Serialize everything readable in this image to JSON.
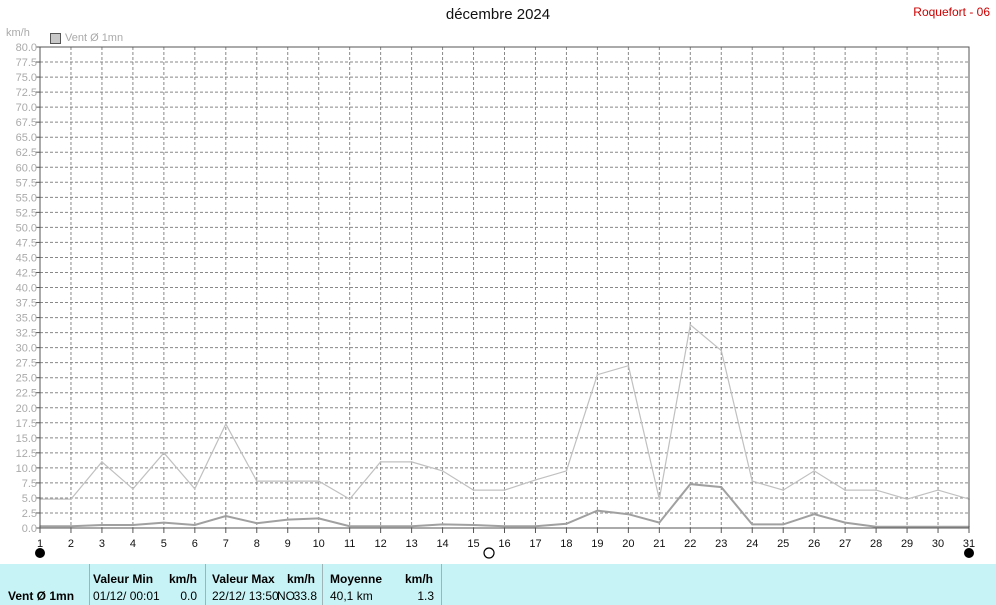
{
  "header": {
    "title": "décembre 2024",
    "station": "Roquefort - 06",
    "unit": "km/h",
    "legend_label": "Vent Ø 1mn"
  },
  "summary": {
    "series_label": "Vent Ø 1mn",
    "min_header": "Valeur Min",
    "min_unit": "km/h",
    "min_date": "01/12/  00:01",
    "min_value": "0.0",
    "max_header": "Valeur Max",
    "max_unit": "km/h",
    "max_date": "22/12/  13:50",
    "max_dir": "NO",
    "max_value": "33.8",
    "avg_header": "Moyenne",
    "avg_unit": "km/h",
    "avg_distance": "40,1 km",
    "avg_value": "1.3"
  },
  "chart_data": {
    "type": "line",
    "x": [
      1,
      2,
      3,
      4,
      5,
      6,
      7,
      8,
      9,
      10,
      11,
      12,
      13,
      14,
      15,
      16,
      17,
      18,
      19,
      20,
      21,
      22,
      23,
      24,
      25,
      26,
      27,
      28,
      29,
      30,
      31
    ],
    "x_ticks": [
      "1",
      "2",
      "3",
      "4",
      "5",
      "6",
      "7",
      "8",
      "9",
      "10",
      "11",
      "12",
      "13",
      "14",
      "15",
      "16",
      "17",
      "18",
      "19",
      "20",
      "21",
      "22",
      "23",
      "24",
      "25",
      "26",
      "27",
      "28",
      "29",
      "30",
      "31"
    ],
    "ylim": [
      0,
      80
    ],
    "y_step": 2.5,
    "grid": true,
    "ylabel": "km/h",
    "series": [
      {
        "color": "#c0c0c0",
        "values": [
          4.8,
          4.8,
          11.0,
          6.5,
          12.5,
          6.5,
          17.3,
          7.8,
          7.8,
          7.8,
          4.8,
          11.0,
          11.0,
          9.5,
          6.3,
          6.3,
          8.0,
          9.5,
          25.5,
          27.0,
          4.8,
          33.8,
          29.5,
          7.8,
          6.3,
          9.5,
          6.3,
          6.3,
          4.8,
          6.3,
          4.8
        ]
      },
      {
        "color": "#a0a0a0",
        "values": [
          0.3,
          0.3,
          0.5,
          0.5,
          0.9,
          0.5,
          2.0,
          0.8,
          1.4,
          1.6,
          0.3,
          0.3,
          0.3,
          0.6,
          0.5,
          0.3,
          0.3,
          0.7,
          2.9,
          2.3,
          0.9,
          7.3,
          6.8,
          0.6,
          0.6,
          2.3,
          0.9,
          0.2,
          0.2,
          0.2,
          0.2
        ]
      }
    ],
    "moon_markers": [
      {
        "day": 1,
        "phase": "new"
      },
      {
        "day": 15.5,
        "phase": "full"
      },
      {
        "day": 31,
        "phase": "new"
      }
    ]
  }
}
